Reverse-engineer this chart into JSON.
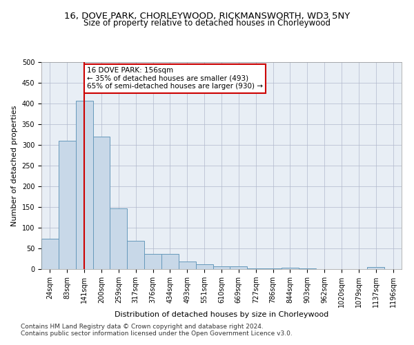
{
  "title1": "16, DOVE PARK, CHORLEYWOOD, RICKMANSWORTH, WD3 5NY",
  "title2": "Size of property relative to detached houses in Chorleywood",
  "xlabel": "Distribution of detached houses by size in Chorleywood",
  "ylabel": "Number of detached properties",
  "footnote1": "Contains HM Land Registry data © Crown copyright and database right 2024.",
  "footnote2": "Contains public sector information licensed under the Open Government Licence v3.0.",
  "categories": [
    "24sqm",
    "83sqm",
    "141sqm",
    "200sqm",
    "259sqm",
    "317sqm",
    "376sqm",
    "434sqm",
    "493sqm",
    "551sqm",
    "610sqm",
    "669sqm",
    "727sqm",
    "786sqm",
    "844sqm",
    "903sqm",
    "962sqm",
    "1020sqm",
    "1079sqm",
    "1137sqm",
    "1196sqm"
  ],
  "values": [
    73,
    310,
    407,
    320,
    147,
    68,
    36,
    36,
    18,
    12,
    6,
    6,
    1,
    1,
    3,
    1,
    0,
    0,
    0,
    5,
    0
  ],
  "bar_color": "#c8d8e8",
  "bar_edge_color": "#6699bb",
  "red_line_x": 2,
  "annotation_title": "16 DOVE PARK: 156sqm",
  "annotation_line1": "← 35% of detached houses are smaller (493)",
  "annotation_line2": "65% of semi-detached houses are larger (930) →",
  "annotation_box_color": "#ffffff",
  "annotation_box_edge": "#cc0000",
  "red_line_color": "#cc0000",
  "ylim": [
    0,
    500
  ],
  "yticks": [
    0,
    50,
    100,
    150,
    200,
    250,
    300,
    350,
    400,
    450,
    500
  ],
  "background_color": "#ffffff",
  "grid_color": "#b0b8cc",
  "title_fontsize": 9.5,
  "subtitle_fontsize": 8.5,
  "axis_label_fontsize": 8,
  "tick_fontsize": 7,
  "annotation_fontsize": 7.5,
  "footnote_fontsize": 6.5
}
